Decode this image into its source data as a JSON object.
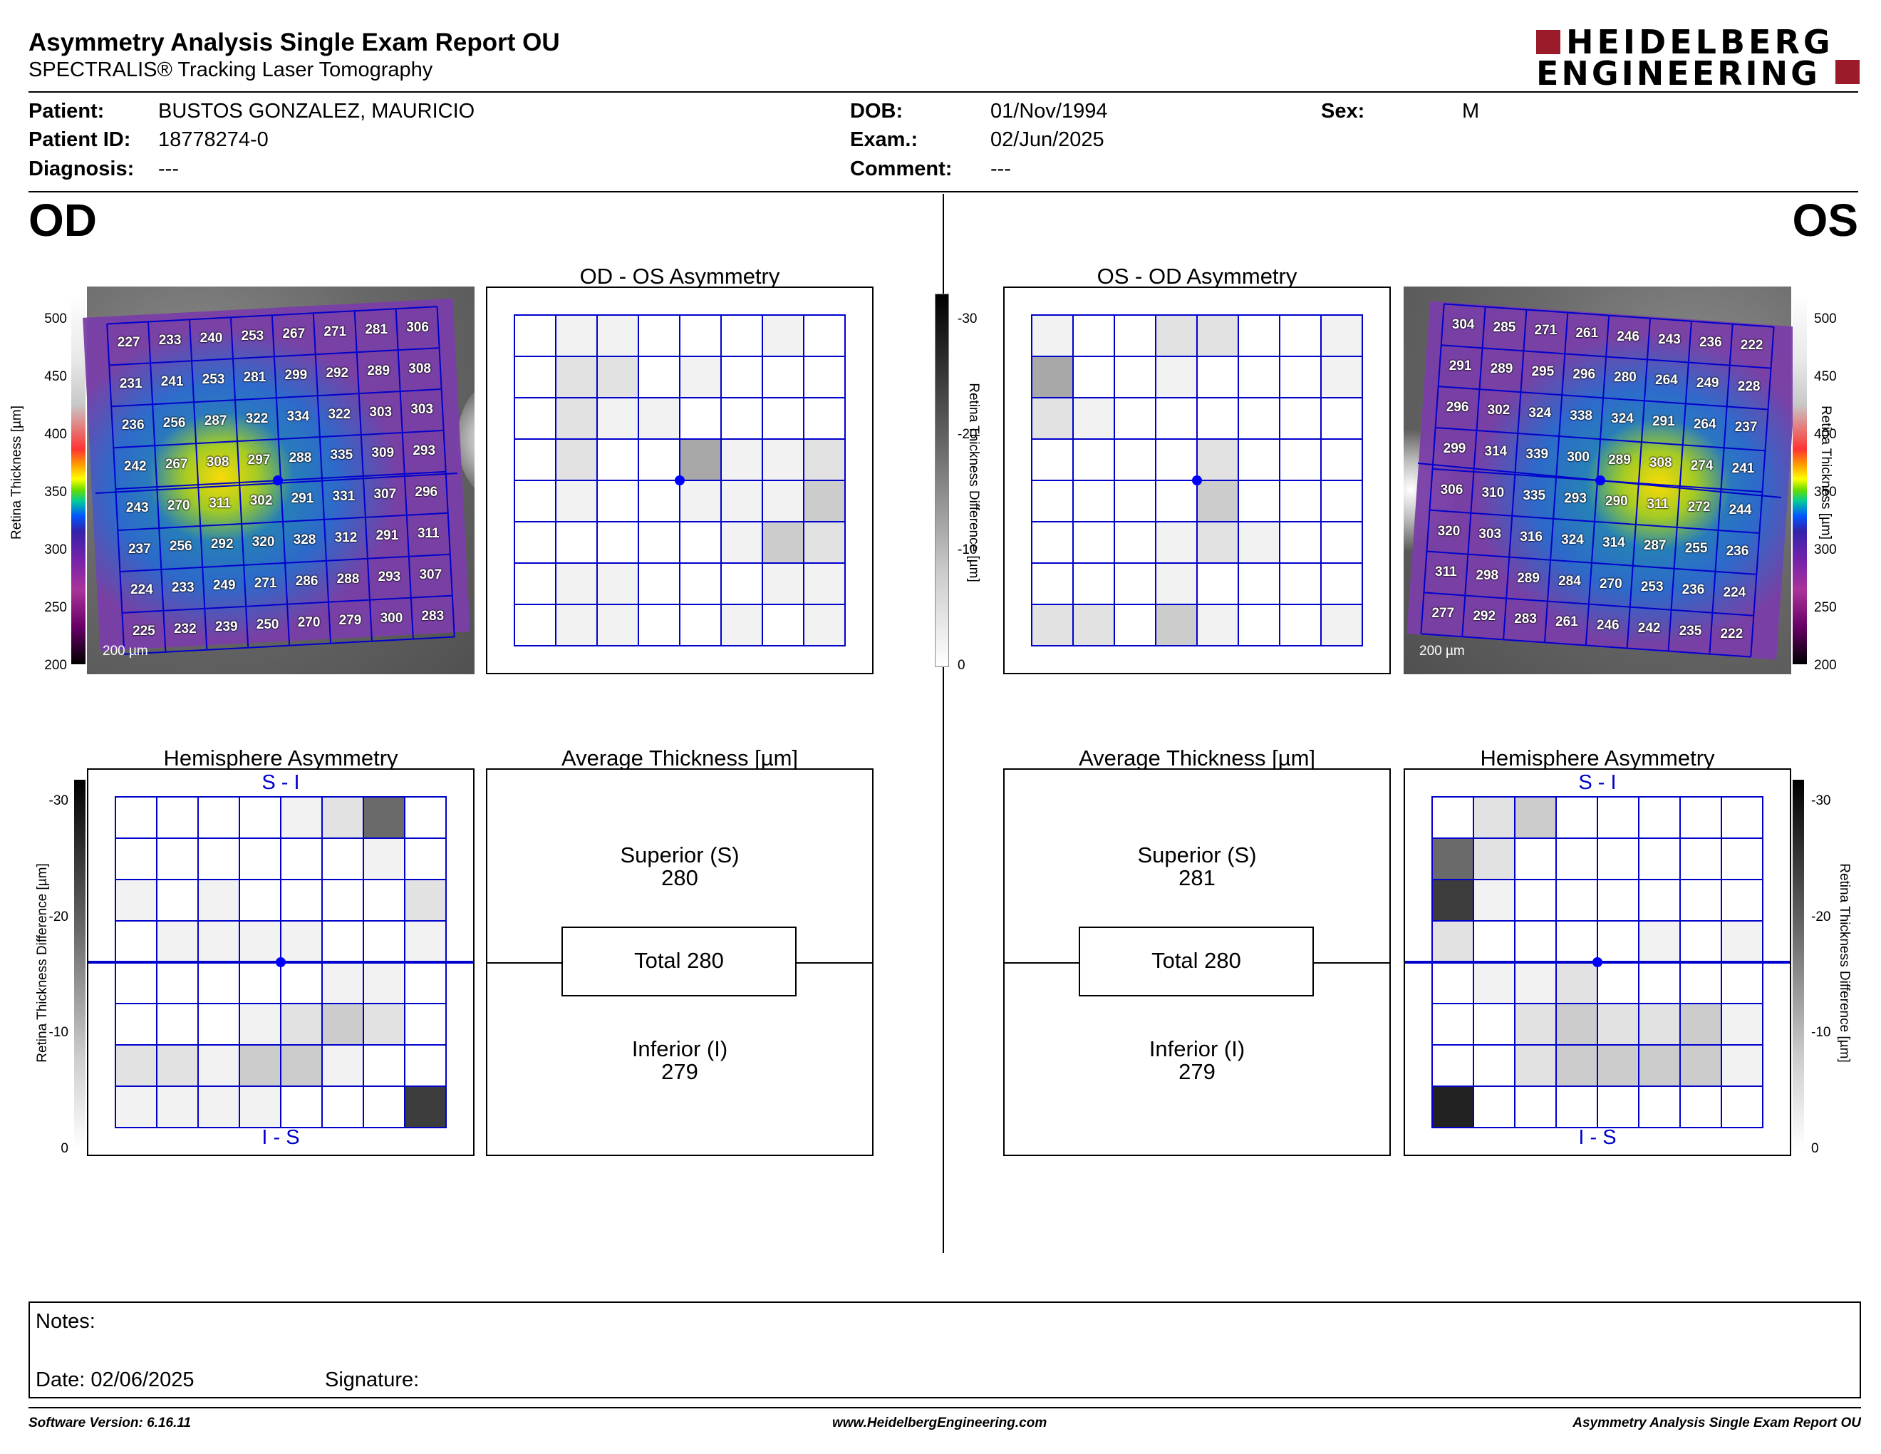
{
  "header": {
    "title": "Asymmetry Analysis Single Exam Report OU",
    "subtitle": "SPECTRALIS® Tracking Laser Tomography",
    "logo_line1": "HEIDELBERG",
    "logo_line2": "ENGINEERING"
  },
  "patient": {
    "patient_label": "Patient:",
    "patient_value": "BUSTOS GONZALEZ, MAURICIO",
    "id_label": "Patient ID:",
    "id_value": "18778274-0",
    "diagnosis_label": "Diagnosis:",
    "diagnosis_value": "---",
    "dob_label": "DOB:",
    "dob_value": "01/Nov/1994",
    "exam_label": "Exam.:",
    "exam_value": "02/Jun/2025",
    "comment_label": "Comment:",
    "comment_value": "---",
    "sex_label": "Sex:",
    "sex_value": "M"
  },
  "eyes": {
    "od": "OD",
    "os": "OS"
  },
  "colors": {
    "grid": "#0000cc",
    "accent": "#0000ff"
  },
  "od": {
    "thickness_grid": [
      [
        227,
        233,
        240,
        253,
        267,
        271,
        281,
        306
      ],
      [
        231,
        241,
        253,
        281,
        299,
        292,
        289,
        308
      ],
      [
        236,
        256,
        287,
        322,
        334,
        322,
        303,
        303
      ],
      [
        242,
        267,
        308,
        297,
        288,
        335,
        309,
        293
      ],
      [
        243,
        270,
        311,
        302,
        291,
        331,
        307,
        296
      ],
      [
        237,
        256,
        292,
        320,
        328,
        312,
        291,
        311
      ],
      [
        224,
        233,
        249,
        271,
        286,
        288,
        293,
        307
      ],
      [
        225,
        232,
        239,
        250,
        270,
        279,
        300,
        283
      ]
    ],
    "scale_label": "200 µm",
    "asym_title": "OD - OS Asymmetry",
    "asym_cells": [
      [
        0,
        1,
        1,
        0,
        0,
        0,
        1,
        0
      ],
      [
        0,
        2,
        2,
        0,
        1,
        0,
        0,
        0
      ],
      [
        0,
        2,
        1,
        1,
        0,
        0,
        0,
        0
      ],
      [
        0,
        2,
        0,
        0,
        4,
        1,
        1,
        2
      ],
      [
        0,
        1,
        0,
        0,
        1,
        1,
        1,
        3
      ],
      [
        0,
        0,
        0,
        0,
        0,
        1,
        3,
        2
      ],
      [
        0,
        1,
        1,
        0,
        0,
        0,
        1,
        1
      ],
      [
        0,
        1,
        1,
        0,
        0,
        1,
        0,
        1
      ]
    ],
    "hemi_title": "Hemisphere Asymmetry",
    "hemi_top": "S - I",
    "hemi_bottom": "I - S",
    "hemi_cells": [
      [
        0,
        0,
        0,
        0,
        1,
        2,
        6,
        0
      ],
      [
        0,
        0,
        0,
        0,
        0,
        0,
        1,
        0
      ],
      [
        1,
        0,
        1,
        0,
        0,
        0,
        0,
        2
      ],
      [
        0,
        1,
        1,
        1,
        1,
        0,
        0,
        1
      ],
      [
        0,
        0,
        0,
        0,
        0,
        1,
        1,
        0
      ],
      [
        0,
        0,
        0,
        1,
        2,
        3,
        2,
        0
      ],
      [
        2,
        2,
        1,
        3,
        3,
        1,
        0,
        0
      ],
      [
        1,
        1,
        1,
        1,
        0,
        0,
        0,
        7
      ]
    ],
    "avg_title": "Average Thickness [µm]",
    "superior_label": "Superior (S)",
    "superior_value": "280",
    "total_label": "Total 280",
    "inferior_label": "Inferior (I)",
    "inferior_value": "279"
  },
  "os": {
    "thickness_grid": [
      [
        304,
        285,
        271,
        261,
        246,
        243,
        236,
        222
      ],
      [
        291,
        289,
        295,
        296,
        280,
        264,
        249,
        228
      ],
      [
        296,
        302,
        324,
        338,
        324,
        291,
        264,
        237
      ],
      [
        299,
        314,
        339,
        300,
        289,
        308,
        274,
        241
      ],
      [
        306,
        310,
        335,
        293,
        290,
        311,
        272,
        244
      ],
      [
        320,
        303,
        316,
        324,
        314,
        287,
        255,
        236
      ],
      [
        311,
        298,
        289,
        284,
        270,
        253,
        236,
        224
      ],
      [
        277,
        292,
        283,
        261,
        246,
        242,
        235,
        222
      ]
    ],
    "scale_label": "200 µm",
    "asym_title": "OS - OD Asymmetry",
    "asym_cells": [
      [
        1,
        0,
        0,
        2,
        2,
        0,
        0,
        1
      ],
      [
        4,
        0,
        0,
        1,
        0,
        0,
        0,
        1
      ],
      [
        2,
        1,
        0,
        0,
        0,
        0,
        0,
        0
      ],
      [
        0,
        0,
        0,
        0,
        2,
        0,
        0,
        0
      ],
      [
        0,
        0,
        0,
        0,
        3,
        0,
        0,
        0
      ],
      [
        0,
        0,
        0,
        1,
        2,
        1,
        0,
        0
      ],
      [
        0,
        0,
        0,
        1,
        0,
        0,
        0,
        0
      ],
      [
        2,
        2,
        0,
        3,
        1,
        0,
        0,
        1
      ]
    ],
    "hemi_title": "Hemisphere Asymmetry",
    "hemi_top": "S - I",
    "hemi_bottom": "I - S",
    "hemi_cells": [
      [
        0,
        2,
        3,
        0,
        0,
        0,
        0,
        0
      ],
      [
        6,
        2,
        0,
        0,
        0,
        0,
        0,
        0
      ],
      [
        7,
        1,
        0,
        0,
        0,
        0,
        0,
        0
      ],
      [
        2,
        0,
        0,
        0,
        0,
        1,
        0,
        1
      ],
      [
        0,
        1,
        1,
        2,
        0,
        0,
        0,
        0
      ],
      [
        0,
        0,
        2,
        3,
        2,
        2,
        3,
        1
      ],
      [
        0,
        0,
        2,
        3,
        3,
        3,
        3,
        1
      ],
      [
        8,
        0,
        0,
        0,
        0,
        0,
        0,
        0
      ]
    ],
    "avg_title": "Average Thickness [µm]",
    "superior_label": "Superior (S)",
    "superior_value": "281",
    "total_label": "Total 280",
    "inferior_label": "Inferior (I)",
    "inferior_value": "279"
  },
  "scales": {
    "thickness_label": "Retina Thickness [µm]",
    "thickness_ticks": [
      "500",
      "450",
      "400",
      "350",
      "300",
      "250",
      "200"
    ],
    "difference_label": "Retina Thickness Difference [µm]",
    "difference_ticks": [
      "-30",
      "-20",
      "-10",
      "0"
    ]
  },
  "notes": {
    "notes_label": "Notes:",
    "date_label": "Date: 02/06/2025",
    "signature_label": "Signature:"
  },
  "footer": {
    "version": "Software Version: 6.16.11",
    "website": "www.HeidelbergEngineering.com",
    "report": "Asymmetry Analysis Single Exam Report OU"
  }
}
